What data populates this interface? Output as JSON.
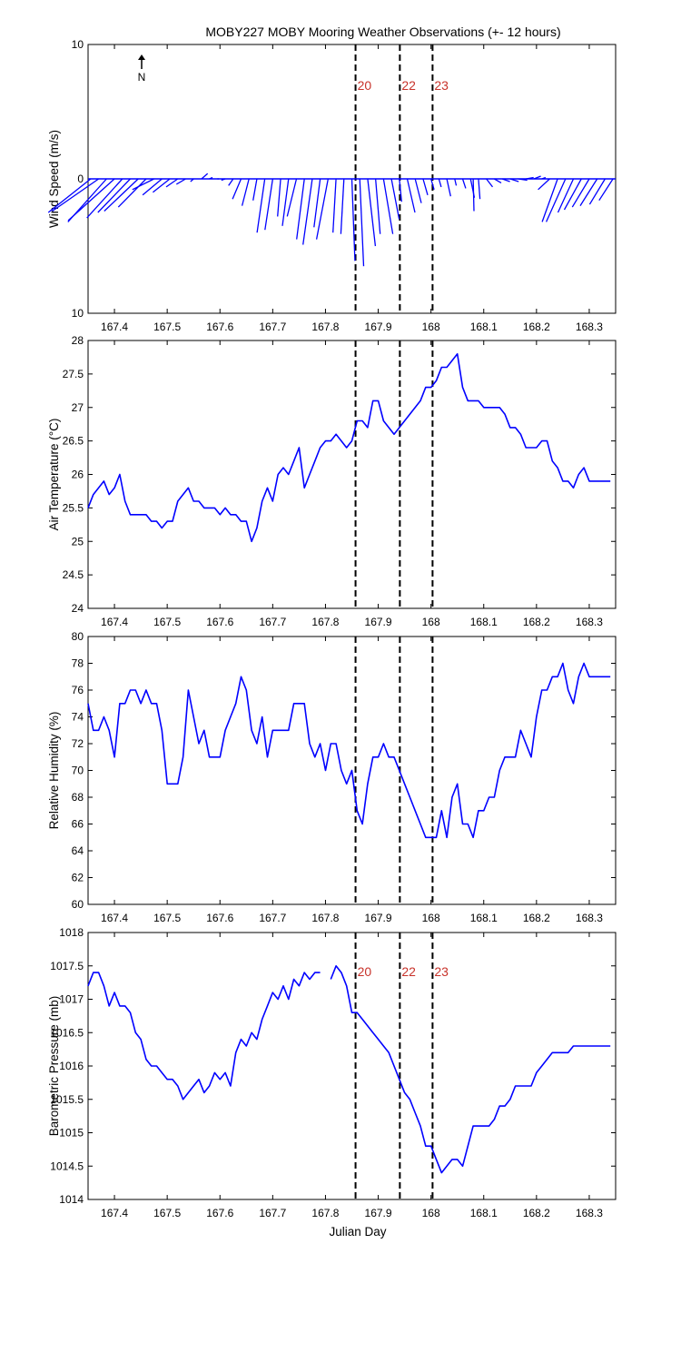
{
  "title": "MOBY227 MOBY Mooring Weather Observations (+- 12 hours)",
  "xlabel": "Julian Day",
  "colors": {
    "series": "#0000ff",
    "marker_lines": "#000000",
    "marker_labels": "#c8322a",
    "frame": "#000000"
  },
  "north_label": "N",
  "north_icon": "north-arrow-icon",
  "chart_data": [
    {
      "id": "wind",
      "type": "vector",
      "ylabel": "Wind Speed (m/s)",
      "xlim": [
        167.35,
        168.35
      ],
      "ylim": [
        -10,
        10
      ],
      "yticks": [
        10,
        0,
        10
      ],
      "ytick_values": [
        10,
        0,
        -10
      ],
      "xticks": [
        167.4,
        167.5,
        167.6,
        167.7,
        167.8,
        167.9,
        168,
        168.1,
        168.2,
        168.3
      ],
      "xtick_labels": [
        "167.4",
        "167.5",
        "167.6",
        "167.7",
        "167.8",
        "167.9",
        "168",
        "168.1",
        "168.2",
        "168.3"
      ],
      "vlines": [
        167.857,
        167.941,
        168.003
      ],
      "vline_labels": [
        "20",
        "22",
        "23"
      ],
      "vectors": [
        [
          167.355,
          -5.5,
          -2.5
        ],
        [
          167.37,
          -6,
          -2.4
        ],
        [
          167.385,
          -5,
          -3.2
        ],
        [
          167.4,
          -6,
          -3.1
        ],
        [
          167.415,
          -4.6,
          -2.9
        ],
        [
          167.43,
          -4.2,
          -2.5
        ],
        [
          167.445,
          -4.4,
          -2.4
        ],
        [
          167.46,
          -3.6,
          -2.1
        ],
        [
          167.475,
          -2.8,
          -0.8
        ],
        [
          167.49,
          -2.5,
          -1.2
        ],
        [
          167.505,
          -2.2,
          -1.0
        ],
        [
          167.52,
          -1.5,
          -0.6
        ],
        [
          167.535,
          -1.2,
          -0.4
        ],
        [
          167.55,
          -0.4,
          -0.2
        ],
        [
          167.565,
          0.8,
          0.4
        ],
        [
          167.58,
          0.4,
          0.1
        ],
        [
          167.595,
          0.2,
          0.0
        ],
        [
          167.61,
          -0.5,
          -0.1
        ],
        [
          167.625,
          -0.6,
          -0.5
        ],
        [
          167.64,
          -1.1,
          -1.5
        ],
        [
          167.655,
          -0.9,
          -2.0
        ],
        [
          167.67,
          -0.5,
          -1.6
        ],
        [
          167.685,
          -1.0,
          -4.0
        ],
        [
          167.7,
          -1.0,
          -3.8
        ],
        [
          167.715,
          -0.4,
          -2.8
        ],
        [
          167.73,
          -0.8,
          -3.5
        ],
        [
          167.745,
          -1.2,
          -2.8
        ],
        [
          167.76,
          -1.0,
          -4.5
        ],
        [
          167.775,
          -1.2,
          -4.9
        ],
        [
          167.79,
          -0.8,
          -3.6
        ],
        [
          167.805,
          -1.5,
          -4.5
        ],
        [
          167.82,
          -0.4,
          -4.0
        ],
        [
          167.835,
          -0.4,
          -4.1
        ],
        [
          167.85,
          0.4,
          -6.1
        ],
        [
          167.865,
          0.5,
          -6.5
        ],
        [
          167.88,
          1.0,
          -5.0
        ],
        [
          167.895,
          0.6,
          -4.1
        ],
        [
          167.91,
          1.2,
          -4.1
        ],
        [
          167.925,
          1.0,
          -3.0
        ],
        [
          167.94,
          0.3,
          -1.7
        ],
        [
          167.955,
          1.0,
          -2.5
        ],
        [
          167.97,
          0.8,
          -1.8
        ],
        [
          167.985,
          0.6,
          -1.2
        ],
        [
          168.0,
          0.4,
          -0.8
        ],
        [
          168.015,
          0.3,
          -0.6
        ],
        [
          168.03,
          0.5,
          -1.3
        ],
        [
          168.045,
          0.2,
          -0.5
        ],
        [
          168.06,
          0.4,
          -0.7
        ],
        [
          168.075,
          0.5,
          -1.4
        ],
        [
          168.08,
          0.1,
          -2.4
        ],
        [
          168.09,
          0.2,
          -1.5
        ],
        [
          168.105,
          0.8,
          -0.6
        ],
        [
          168.12,
          0.9,
          -0.3
        ],
        [
          168.135,
          1.0,
          -0.2
        ],
        [
          168.15,
          1.1,
          -0.2
        ],
        [
          168.165,
          1.2,
          -0.1
        ],
        [
          168.18,
          1.0,
          0.1
        ],
        [
          168.195,
          0.9,
          0.2
        ],
        [
          168.21,
          0.5,
          0.1
        ],
        [
          168.225,
          -1.5,
          -0.8
        ],
        [
          168.24,
          -2.0,
          -3.2
        ],
        [
          168.255,
          -2.5,
          -3.2
        ],
        [
          168.27,
          -2.0,
          -2.5
        ],
        [
          168.285,
          -2.2,
          -2.3
        ],
        [
          168.3,
          -2.2,
          -2.1
        ],
        [
          168.315,
          -2.2,
          -2.0
        ],
        [
          168.33,
          -2.0,
          -1.9
        ],
        [
          168.345,
          -1.8,
          -1.6
        ]
      ]
    },
    {
      "id": "airtemp",
      "type": "line",
      "ylabel": "Air Temperature (°C)",
      "xlim": [
        167.35,
        168.35
      ],
      "ylim": [
        24,
        28
      ],
      "yticks": [
        24,
        24.5,
        25,
        25.5,
        26,
        26.5,
        27,
        27.5,
        28
      ],
      "ytick_labels": [
        "24",
        "24.5",
        "25",
        "25.5",
        "26",
        "26.5",
        "27",
        "27.5",
        "28"
      ],
      "xticks": [
        167.4,
        167.5,
        167.6,
        167.7,
        167.8,
        167.9,
        168,
        168.1,
        168.2,
        168.3
      ],
      "xtick_labels": [
        "167.4",
        "167.5",
        "167.6",
        "167.7",
        "167.8",
        "167.9",
        "168",
        "168.1",
        "168.2",
        "168.3"
      ],
      "vlines": [
        167.857,
        167.941,
        168.003
      ],
      "x": [
        167.35,
        167.36,
        167.37,
        167.38,
        167.39,
        167.4,
        167.41,
        167.42,
        167.43,
        167.44,
        167.45,
        167.46,
        167.47,
        167.48,
        167.49,
        167.5,
        167.51,
        167.52,
        167.53,
        167.54,
        167.55,
        167.56,
        167.57,
        167.58,
        167.59,
        167.6,
        167.61,
        167.62,
        167.63,
        167.64,
        167.65,
        167.66,
        167.67,
        167.68,
        167.69,
        167.7,
        167.71,
        167.72,
        167.73,
        167.74,
        167.75,
        167.76,
        167.77,
        167.78,
        167.79,
        167.8,
        167.81,
        167.82,
        167.83,
        167.84,
        167.85,
        167.86,
        167.87,
        167.88,
        167.89,
        167.9,
        167.91,
        167.92,
        167.93,
        167.94,
        167.95,
        167.96,
        167.97,
        167.98,
        167.99,
        168.0,
        168.01,
        168.02,
        168.03,
        168.04,
        168.05,
        168.06,
        168.07,
        168.08,
        168.09,
        168.1,
        168.11,
        168.12,
        168.13,
        168.14,
        168.15,
        168.16,
        168.17,
        168.18,
        168.19,
        168.2,
        168.21,
        168.22,
        168.23,
        168.24,
        168.25,
        168.26,
        168.27,
        168.28,
        168.29,
        168.3,
        168.31,
        168.32,
        168.33,
        168.34
      ],
      "y": [
        25.5,
        25.7,
        25.8,
        25.9,
        25.7,
        25.8,
        26.0,
        25.6,
        25.4,
        25.4,
        25.4,
        25.4,
        25.3,
        25.3,
        25.2,
        25.3,
        25.3,
        25.6,
        25.7,
        25.8,
        25.6,
        25.6,
        25.5,
        25.5,
        25.5,
        25.4,
        25.5,
        25.4,
        25.4,
        25.3,
        25.3,
        25.0,
        25.2,
        25.6,
        25.8,
        25.6,
        26.0,
        26.1,
        26.0,
        26.2,
        26.4,
        25.8,
        26.0,
        26.2,
        26.4,
        26.5,
        26.5,
        26.6,
        26.5,
        26.4,
        26.5,
        26.8,
        26.8,
        26.7,
        27.1,
        27.1,
        26.8,
        26.7,
        26.6,
        26.7,
        26.8,
        26.9,
        27.0,
        27.1,
        27.3,
        27.3,
        27.4,
        27.6,
        27.6,
        27.7,
        27.8,
        27.3,
        27.1,
        27.1,
        27.1,
        27.0,
        27.0,
        27.0,
        27.0,
        26.9,
        26.7,
        26.7,
        26.6,
        26.4,
        26.4,
        26.4,
        26.5,
        26.5,
        26.2,
        26.1,
        25.9,
        25.9,
        25.8,
        26.0,
        26.1,
        25.9,
        25.9,
        25.9,
        25.9,
        25.9
      ]
    },
    {
      "id": "rh",
      "type": "line",
      "ylabel": "Relative Humidity (%)",
      "xlim": [
        167.35,
        168.35
      ],
      "ylim": [
        60,
        80
      ],
      "yticks": [
        60,
        62,
        64,
        66,
        68,
        70,
        72,
        74,
        76,
        78,
        80
      ],
      "ytick_labels": [
        "60",
        "62",
        "64",
        "66",
        "68",
        "70",
        "72",
        "74",
        "76",
        "78",
        "80"
      ],
      "xticks": [
        167.4,
        167.5,
        167.6,
        167.7,
        167.8,
        167.9,
        168,
        168.1,
        168.2,
        168.3
      ],
      "xtick_labels": [
        "167.4",
        "167.5",
        "167.6",
        "167.7",
        "167.8",
        "167.9",
        "168",
        "168.1",
        "168.2",
        "168.3"
      ],
      "vlines": [
        167.857,
        167.941,
        168.003
      ],
      "x": [
        167.35,
        167.36,
        167.37,
        167.38,
        167.39,
        167.4,
        167.41,
        167.42,
        167.43,
        167.44,
        167.45,
        167.46,
        167.47,
        167.48,
        167.49,
        167.5,
        167.51,
        167.52,
        167.53,
        167.54,
        167.55,
        167.56,
        167.57,
        167.58,
        167.59,
        167.6,
        167.61,
        167.62,
        167.63,
        167.64,
        167.65,
        167.66,
        167.67,
        167.68,
        167.69,
        167.7,
        167.71,
        167.72,
        167.73,
        167.74,
        167.75,
        167.76,
        167.77,
        167.78,
        167.79,
        167.8,
        167.81,
        167.82,
        167.83,
        167.84,
        167.85,
        167.86,
        167.87,
        167.88,
        167.89,
        167.9,
        167.91,
        167.92,
        167.93,
        167.94,
        167.95,
        167.96,
        167.97,
        167.98,
        167.99,
        168.0,
        168.01,
        168.02,
        168.03,
        168.04,
        168.05,
        168.06,
        168.07,
        168.08,
        168.09,
        168.1,
        168.11,
        168.12,
        168.13,
        168.14,
        168.15,
        168.16,
        168.17,
        168.18,
        168.19,
        168.2,
        168.21,
        168.22,
        168.23,
        168.24,
        168.25,
        168.26,
        168.27,
        168.28,
        168.29,
        168.3,
        168.31,
        168.32,
        168.33,
        168.34
      ],
      "y": [
        75,
        73,
        73,
        74,
        73,
        71,
        75,
        75,
        76,
        76,
        75,
        76,
        75,
        75,
        73,
        69,
        69,
        69,
        71,
        76,
        74,
        72,
        73,
        71,
        71,
        71,
        73,
        74,
        75,
        77,
        76,
        73,
        72,
        74,
        71,
        73,
        73,
        73,
        73,
        75,
        75,
        75,
        72,
        71,
        72,
        70,
        72,
        72,
        70,
        69,
        70,
        67,
        66,
        69,
        71,
        71,
        72,
        71,
        71,
        70,
        69,
        68,
        67,
        66,
        65,
        65,
        65,
        67,
        65,
        68,
        69,
        66,
        66,
        65,
        67,
        67,
        68,
        68,
        70,
        71,
        71,
        71,
        73,
        72,
        71,
        74,
        76,
        76,
        77,
        77,
        78,
        76,
        75,
        77,
        78,
        77,
        77,
        77,
        77,
        77
      ]
    },
    {
      "id": "baro",
      "type": "line",
      "ylabel": "Barometric Pressure (mb)",
      "xlim": [
        167.35,
        168.35
      ],
      "ylim": [
        1014,
        1018
      ],
      "yticks": [
        1014,
        1014.5,
        1015,
        1015.5,
        1016,
        1016.5,
        1017,
        1017.5,
        1018
      ],
      "ytick_labels": [
        "1014",
        "1014.5",
        "1015",
        "1015.5",
        "1016",
        "1016.5",
        "1017",
        "1017.5",
        "1018"
      ],
      "xticks": [
        167.4,
        167.5,
        167.6,
        167.7,
        167.8,
        167.9,
        168,
        168.1,
        168.2,
        168.3
      ],
      "xtick_labels": [
        "167.4",
        "167.5",
        "167.6",
        "167.7",
        "167.8",
        "167.9",
        "168",
        "168.1",
        "168.2",
        "168.3"
      ],
      "vlines": [
        167.857,
        167.941,
        168.003
      ],
      "vline_labels": [
        "20",
        "22",
        "23"
      ],
      "x": [
        167.35,
        167.36,
        167.37,
        167.38,
        167.39,
        167.4,
        167.41,
        167.42,
        167.43,
        167.44,
        167.45,
        167.46,
        167.47,
        167.48,
        167.49,
        167.5,
        167.51,
        167.52,
        167.53,
        167.54,
        167.55,
        167.56,
        167.57,
        167.58,
        167.59,
        167.6,
        167.61,
        167.62,
        167.63,
        167.64,
        167.65,
        167.66,
        167.67,
        167.68,
        167.69,
        167.7,
        167.71,
        167.72,
        167.73,
        167.74,
        167.75,
        167.76,
        167.77,
        167.78,
        167.79,
        167.8,
        167.81,
        167.82,
        167.83,
        167.84,
        167.85,
        167.86,
        167.87,
        167.88,
        167.89,
        167.9,
        167.91,
        167.92,
        167.93,
        167.94,
        167.95,
        167.96,
        167.97,
        167.98,
        167.99,
        168.0,
        168.01,
        168.02,
        168.03,
        168.04,
        168.05,
        168.06,
        168.07,
        168.08,
        168.09,
        168.1,
        168.11,
        168.12,
        168.13,
        168.14,
        168.15,
        168.16,
        168.17,
        168.18,
        168.19,
        168.2,
        168.21,
        168.22,
        168.23,
        168.24,
        168.25,
        168.26,
        168.27,
        168.28,
        168.29,
        168.3,
        168.31,
        168.32,
        168.33,
        168.34
      ],
      "y": [
        1017.2,
        1017.4,
        1017.4,
        1017.2,
        1016.9,
        1017.1,
        1016.9,
        1016.9,
        1016.8,
        1016.5,
        1016.4,
        1016.1,
        1016.0,
        1016.0,
        1015.9,
        1015.8,
        1015.8,
        1015.7,
        1015.5,
        1015.6,
        1015.7,
        1015.8,
        1015.6,
        1015.7,
        1015.9,
        1015.8,
        1015.9,
        1015.7,
        1016.2,
        1016.4,
        1016.3,
        1016.5,
        1016.4,
        1016.7,
        1016.9,
        1017.1,
        1017.0,
        1017.2,
        1017.0,
        1017.3,
        1017.2,
        1017.4,
        1017.3,
        1017.4,
        1017.4,
        null,
        1017.3,
        1017.5,
        1017.4,
        1017.2,
        1016.8,
        1016.8,
        1016.7,
        1016.6,
        1016.5,
        1016.4,
        1016.3,
        1016.2,
        1016.0,
        1015.8,
        1015.6,
        1015.5,
        1015.3,
        1015.1,
        1014.8,
        1014.8,
        1014.6,
        1014.4,
        1014.5,
        1014.6,
        1014.6,
        1014.5,
        1014.8,
        1015.1,
        1015.1,
        1015.1,
        1015.1,
        1015.2,
        1015.4,
        1015.4,
        1015.5,
        1015.7,
        1015.7,
        1015.7,
        1015.7,
        1015.9,
        1016.0,
        1016.1,
        1016.2,
        1016.2,
        1016.2,
        1016.2,
        1016.3,
        1016.3,
        1016.3,
        1016.3,
        1016.3,
        1016.3,
        1016.3,
        1016.3
      ]
    }
  ]
}
